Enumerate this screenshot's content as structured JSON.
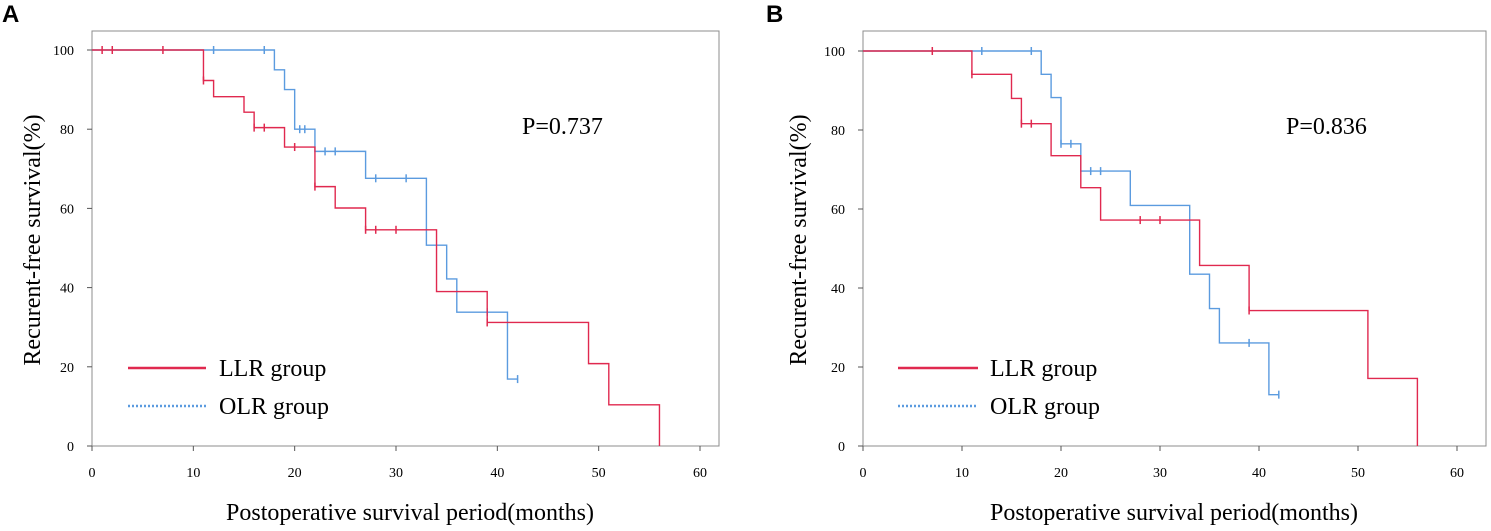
{
  "chart_data": [
    {
      "panel": "A",
      "type": "line",
      "subtype": "kaplan-meier-step",
      "xlabel": "Postoperative survival period(months)",
      "ylabel": "Recurent-free survival(%)",
      "xlim": [
        0,
        65
      ],
      "ylim": [
        0,
        105
      ],
      "xticks": [
        0,
        10,
        20,
        30,
        40,
        50,
        60
      ],
      "yticks": [
        0,
        20,
        40,
        60,
        80,
        100
      ],
      "annotation": "P=0.737",
      "legend_position": "bottom-left",
      "series": [
        {
          "name": "LLR group",
          "color": "#e0294f",
          "legend_style": "solid",
          "steps": [
            [
              0,
              100
            ],
            [
              11,
              92.3
            ],
            [
              12,
              88.2
            ],
            [
              15,
              84.3
            ],
            [
              16,
              80.4
            ],
            [
              19,
              75.5
            ],
            [
              22,
              65.5
            ],
            [
              24,
              60.1
            ],
            [
              27,
              54.6
            ],
            [
              34,
              39
            ],
            [
              39,
              31.2
            ],
            [
              49,
              20.8
            ],
            [
              51,
              10.4
            ],
            [
              56,
              0
            ]
          ],
          "censored": [
            [
              1,
              100
            ],
            [
              2,
              100
            ],
            [
              7,
              100
            ],
            [
              11,
              92.3
            ],
            [
              16,
              80.4
            ],
            [
              17,
              80.4
            ],
            [
              20,
              75.5
            ],
            [
              22,
              65.5
            ],
            [
              27,
              54.6
            ],
            [
              28,
              54.6
            ],
            [
              30,
              54.6
            ],
            [
              39,
              31.2
            ]
          ]
        },
        {
          "name": "OLR group",
          "color": "#5b9bdf",
          "legend_style": "dotted",
          "steps": [
            [
              0,
              100
            ],
            [
              18,
              95
            ],
            [
              19,
              90
            ],
            [
              20,
              80
            ],
            [
              22,
              74.4
            ],
            [
              27,
              67.6
            ],
            [
              33,
              50.7
            ],
            [
              35,
              42.2
            ],
            [
              36,
              33.8
            ],
            [
              41,
              16.9
            ]
          ],
          "censored": [
            [
              12,
              100
            ],
            [
              17,
              100
            ],
            [
              20.5,
              80
            ],
            [
              21,
              80
            ],
            [
              23,
              74.4
            ],
            [
              24,
              74.4
            ],
            [
              28,
              67.6
            ],
            [
              31,
              67.6
            ],
            [
              39,
              33.8
            ],
            [
              42,
              16.9
            ]
          ]
        }
      ]
    },
    {
      "panel": "B",
      "type": "line",
      "subtype": "kaplan-meier-step",
      "xlabel": "Postoperative survival period(months)",
      "ylabel": "Recurent-free survival(%)",
      "xlim": [
        0,
        65
      ],
      "ylim": [
        0,
        105
      ],
      "xticks": [
        0,
        10,
        20,
        30,
        40,
        50,
        60
      ],
      "yticks": [
        0,
        20,
        40,
        60,
        80,
        100
      ],
      "annotation": "P=0.836",
      "legend_position": "bottom-left",
      "series": [
        {
          "name": "LLR group",
          "color": "#e0294f",
          "legend_style": "solid",
          "steps": [
            [
              0,
              100
            ],
            [
              11,
              94.1
            ],
            [
              15,
              88
            ],
            [
              16,
              81.6
            ],
            [
              19,
              73.5
            ],
            [
              22,
              65.4
            ],
            [
              24,
              57.2
            ],
            [
              34,
              45.7
            ],
            [
              39,
              34.3
            ],
            [
              51,
              17.1
            ],
            [
              56,
              0
            ]
          ],
          "censored": [
            [
              7,
              100
            ],
            [
              11,
              94.1
            ],
            [
              16,
              81.6
            ],
            [
              17,
              81.6
            ],
            [
              28,
              57.2
            ],
            [
              30,
              57.2
            ],
            [
              39,
              34.3
            ]
          ]
        },
        {
          "name": "OLR group",
          "color": "#5b9bdf",
          "legend_style": "dotted",
          "steps": [
            [
              0,
              100
            ],
            [
              18,
              94.1
            ],
            [
              19,
              88.2
            ],
            [
              20,
              76.5
            ],
            [
              22,
              69.6
            ],
            [
              27,
              60.9
            ],
            [
              33,
              43.5
            ],
            [
              35,
              34.8
            ],
            [
              36,
              26.1
            ],
            [
              41,
              13
            ]
          ],
          "censored": [
            [
              12,
              100
            ],
            [
              17,
              100
            ],
            [
              20,
              76.5
            ],
            [
              21,
              76.5
            ],
            [
              23,
              69.6
            ],
            [
              24,
              69.6
            ],
            [
              39,
              26.1
            ],
            [
              42,
              13
            ]
          ]
        }
      ]
    }
  ]
}
